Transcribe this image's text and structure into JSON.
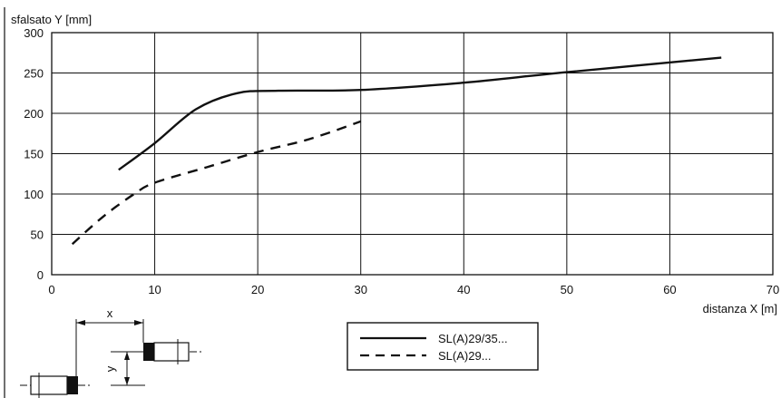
{
  "chart_data": {
    "type": "line",
    "ylabel": "sfalsato Y [mm]",
    "xlabel": "distanza X [m]",
    "xlim": [
      0,
      70
    ],
    "ylim": [
      0,
      300
    ],
    "x_ticks": [
      0,
      10,
      20,
      30,
      40,
      50,
      60,
      70
    ],
    "y_ticks": [
      0,
      50,
      100,
      150,
      200,
      250,
      300
    ],
    "grid": true,
    "legend_position": "bottom-center",
    "series": [
      {
        "name": "SL(A)29/35...",
        "style": "solid",
        "color": "#111111",
        "points": [
          [
            6.5,
            130
          ],
          [
            10,
            163
          ],
          [
            14,
            205
          ],
          [
            18,
            225
          ],
          [
            22,
            228
          ],
          [
            30,
            229
          ],
          [
            40,
            238
          ],
          [
            50,
            251
          ],
          [
            65,
            269
          ]
        ]
      },
      {
        "name": "SL(A)29...",
        "style": "dashed",
        "color": "#111111",
        "points": [
          [
            2,
            38
          ],
          [
            5,
            72
          ],
          [
            8,
            100
          ],
          [
            10,
            114
          ],
          [
            15,
            133
          ],
          [
            20,
            152
          ],
          [
            25,
            168
          ],
          [
            30,
            190
          ]
        ]
      }
    ]
  },
  "diagram": {
    "x_label": "x",
    "y_label": "y"
  }
}
